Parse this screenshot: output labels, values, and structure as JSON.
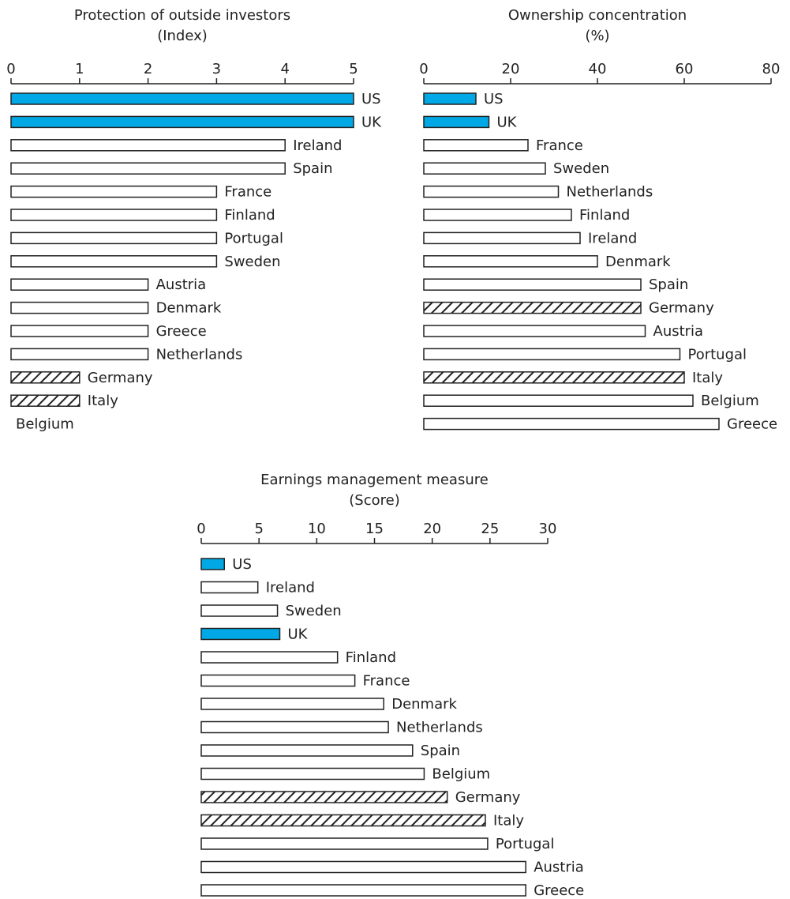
{
  "chart_data": [
    {
      "type": "bar",
      "orientation": "horizontal",
      "title": "Protection of outside investors",
      "subtitle": "(Index)",
      "categories": [
        "US",
        "UK",
        "Ireland",
        "Spain",
        "France",
        "Finland",
        "Portugal",
        "Sweden",
        "Austria",
        "Denmark",
        "Greece",
        "Netherlands",
        "Germany",
        "Italy",
        "Belgium"
      ],
      "values": [
        5,
        5,
        4,
        4,
        3,
        3,
        3,
        3,
        2,
        2,
        2,
        2,
        1,
        1,
        0
      ],
      "colors": [
        "#00a9e6",
        "#00a9e6",
        "#ffffff",
        "#ffffff",
        "#ffffff",
        "#ffffff",
        "#ffffff",
        "#ffffff",
        "#ffffff",
        "#ffffff",
        "#ffffff",
        "#ffffff",
        "hatch",
        "hatch",
        "#ffffff"
      ],
      "xlim": [
        0,
        5
      ],
      "xticks": [
        0,
        1,
        2,
        3,
        4,
        5
      ]
    },
    {
      "type": "bar",
      "orientation": "horizontal",
      "title": "Ownership concentration",
      "subtitle": "(%)",
      "categories": [
        "US",
        "UK",
        "France",
        "Sweden",
        "Netherlands",
        "Finland",
        "Ireland",
        "Denmark",
        "Spain",
        "Germany",
        "Austria",
        "Portugal",
        "Italy",
        "Belgium",
        "Greece"
      ],
      "values": [
        12,
        15,
        24,
        28,
        31,
        34,
        36,
        40,
        50,
        50,
        51,
        59,
        60,
        62,
        68
      ],
      "colors": [
        "#00a9e6",
        "#00a9e6",
        "#ffffff",
        "#ffffff",
        "#ffffff",
        "#ffffff",
        "#ffffff",
        "#ffffff",
        "#ffffff",
        "hatch",
        "#ffffff",
        "#ffffff",
        "hatch",
        "#ffffff",
        "#ffffff"
      ],
      "xlim": [
        0,
        80
      ],
      "xticks": [
        0,
        20,
        40,
        60,
        80
      ]
    },
    {
      "type": "bar",
      "orientation": "horizontal",
      "title": "Earnings management measure",
      "subtitle": "(Score)",
      "categories": [
        "US",
        "Ireland",
        "Sweden",
        "UK",
        "Finland",
        "France",
        "Denmark",
        "Netherlands",
        "Spain",
        "Belgium",
        "Germany",
        "Italy",
        "Portugal",
        "Austria",
        "Greece"
      ],
      "values": [
        2,
        4.9,
        6.6,
        6.8,
        11.8,
        13.3,
        15.8,
        16.2,
        18.3,
        19.3,
        21.3,
        24.6,
        24.8,
        28.1,
        28.1
      ],
      "colors": [
        "#00a9e6",
        "#ffffff",
        "#ffffff",
        "#00a9e6",
        "#ffffff",
        "#ffffff",
        "#ffffff",
        "#ffffff",
        "#ffffff",
        "#ffffff",
        "hatch",
        "hatch",
        "#ffffff",
        "#ffffff",
        "#ffffff"
      ],
      "xlim": [
        0,
        30
      ],
      "xticks": [
        0,
        5,
        10,
        15,
        20,
        25,
        30
      ]
    }
  ]
}
